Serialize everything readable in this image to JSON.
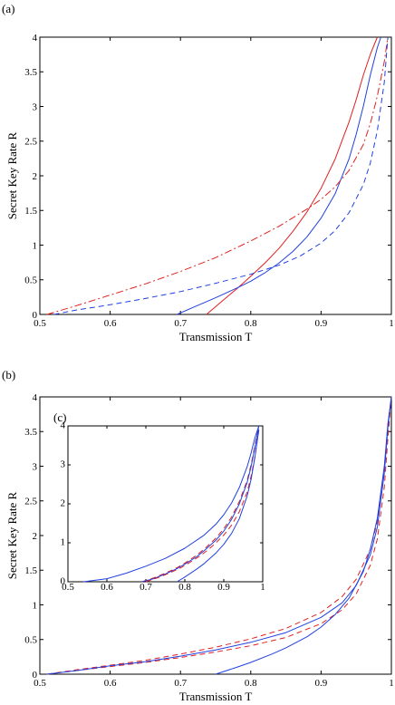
{
  "colors": {
    "red": "#e02020",
    "blue": "#2040e0"
  },
  "chart_data": [
    {
      "panel_label": "(a)",
      "type": "line",
      "xlabel": "Transmission T",
      "ylabel": "Secret Key Rate R",
      "xlim": [
        0.5,
        1.0
      ],
      "ylim": [
        0,
        4
      ],
      "xticks": [
        "0.5",
        "0.6",
        "0.7",
        "0.8",
        "0.9",
        "1"
      ],
      "yticks": [
        "0",
        "0.5",
        "1",
        "1.5",
        "2",
        "2.5",
        "3",
        "3.5",
        "4"
      ],
      "series": [
        {
          "color": "red",
          "style": "solid",
          "x": [
            0.737,
            0.76,
            0.78,
            0.8,
            0.82,
            0.84,
            0.86,
            0.88,
            0.9,
            0.92,
            0.94,
            0.95,
            0.96,
            0.97,
            0.98
          ],
          "y": [
            0,
            0.2,
            0.37,
            0.55,
            0.74,
            0.95,
            1.2,
            1.48,
            1.82,
            2.24,
            2.78,
            3.1,
            3.45,
            3.75,
            4.0
          ]
        },
        {
          "color": "blue",
          "style": "solid",
          "x": [
            0.695,
            0.72,
            0.75,
            0.78,
            0.8,
            0.82,
            0.84,
            0.86,
            0.88,
            0.9,
            0.92,
            0.94,
            0.95,
            0.96,
            0.97,
            0.98,
            0.985
          ],
          "y": [
            0,
            0.11,
            0.24,
            0.38,
            0.48,
            0.6,
            0.74,
            0.91,
            1.12,
            1.39,
            1.74,
            2.25,
            2.6,
            3.0,
            3.45,
            3.85,
            4.0
          ]
        },
        {
          "color": "red",
          "style": "dashdot",
          "x": [
            0.51,
            0.55,
            0.6,
            0.65,
            0.7,
            0.75,
            0.8,
            0.84,
            0.88,
            0.9,
            0.92,
            0.94,
            0.96,
            0.97,
            0.98,
            0.99,
            0.995
          ],
          "y": [
            0,
            0.12,
            0.28,
            0.44,
            0.62,
            0.82,
            1.06,
            1.27,
            1.52,
            1.66,
            1.84,
            2.08,
            2.45,
            2.75,
            3.15,
            3.65,
            4.0
          ]
        },
        {
          "color": "blue",
          "style": "dashed",
          "x": [
            0.52,
            0.55,
            0.6,
            0.65,
            0.7,
            0.75,
            0.8,
            0.84,
            0.87,
            0.9,
            0.92,
            0.94,
            0.96,
            0.97,
            0.98,
            0.99,
            0.995
          ],
          "y": [
            0,
            0.06,
            0.14,
            0.23,
            0.33,
            0.45,
            0.58,
            0.71,
            0.84,
            1.03,
            1.21,
            1.47,
            1.87,
            2.18,
            2.65,
            3.35,
            4.0
          ]
        }
      ]
    },
    {
      "panel_label": "(b)",
      "type": "line",
      "xlabel": "Transmission T",
      "ylabel": "Secret Key Rate R",
      "xlim": [
        0.5,
        1.0
      ],
      "ylim": [
        0,
        4
      ],
      "xticks": [
        "0.5",
        "0.6",
        "0.7",
        "0.8",
        "0.9",
        "1"
      ],
      "yticks": [
        "0",
        "0.5",
        "1",
        "1.5",
        "2",
        "2.5",
        "3",
        "3.5",
        "4"
      ],
      "series": [
        {
          "color": "red",
          "style": "dashed",
          "x": [
            0.51,
            0.55,
            0.6,
            0.65,
            0.7,
            0.75,
            0.8,
            0.85,
            0.9,
            0.93,
            0.95,
            0.97,
            0.98,
            0.99,
            0.995,
            1.0
          ],
          "y": [
            0,
            0.06,
            0.13,
            0.2,
            0.29,
            0.39,
            0.51,
            0.66,
            0.89,
            1.12,
            1.37,
            1.8,
            2.2,
            2.95,
            3.6,
            4.0
          ]
        },
        {
          "color": "red",
          "style": "dashed",
          "x": [
            0.51,
            0.55,
            0.6,
            0.65,
            0.7,
            0.75,
            0.8,
            0.85,
            0.9,
            0.93,
            0.95,
            0.97,
            0.98,
            0.99,
            0.995,
            1.0
          ],
          "y": [
            0,
            0.05,
            0.11,
            0.17,
            0.24,
            0.32,
            0.41,
            0.53,
            0.73,
            0.93,
            1.16,
            1.57,
            1.95,
            2.7,
            3.4,
            4.0
          ]
        },
        {
          "color": "blue",
          "style": "solid",
          "x": [
            0.51,
            0.55,
            0.6,
            0.65,
            0.7,
            0.75,
            0.8,
            0.85,
            0.9,
            0.93,
            0.95,
            0.97,
            0.98,
            0.99,
            0.995,
            1.0
          ],
          "y": [
            0,
            0.05,
            0.12,
            0.18,
            0.26,
            0.35,
            0.46,
            0.6,
            0.82,
            1.03,
            1.28,
            1.72,
            2.12,
            2.9,
            3.55,
            4.0
          ]
        },
        {
          "color": "blue",
          "style": "solid",
          "x": [
            0.75,
            0.78,
            0.8,
            0.83,
            0.85,
            0.88,
            0.9,
            0.92,
            0.94,
            0.96,
            0.97,
            0.98,
            0.99,
            0.995,
            1.0
          ],
          "y": [
            0,
            0.1,
            0.17,
            0.29,
            0.38,
            0.54,
            0.68,
            0.86,
            1.1,
            1.48,
            1.8,
            2.25,
            3.0,
            3.6,
            4.0
          ]
        }
      ],
      "inset": {
        "panel_label": "(c)",
        "xlim": [
          0.5,
          1.0
        ],
        "ylim": [
          0,
          4
        ],
        "xticks": [
          "0.5",
          "0.6",
          "0.7",
          "0.8",
          "0.9",
          "1"
        ],
        "yticks": [
          "0",
          "1",
          "2",
          "3",
          "4"
        ],
        "series": [
          {
            "color": "blue",
            "style": "solid",
            "x": [
              0.54,
              0.6,
              0.65,
              0.7,
              0.75,
              0.8,
              0.85,
              0.88,
              0.9,
              0.92,
              0.94,
              0.96,
              0.97,
              0.98,
              0.99
            ],
            "y": [
              0,
              0.08,
              0.22,
              0.4,
              0.6,
              0.86,
              1.2,
              1.48,
              1.72,
              2.02,
              2.42,
              2.95,
              3.3,
              3.7,
              4.0
            ]
          },
          {
            "color": "red",
            "style": "dashed",
            "x": [
              0.69,
              0.72,
              0.75,
              0.78,
              0.8,
              0.83,
              0.85,
              0.88,
              0.9,
              0.92,
              0.94,
              0.96,
              0.97,
              0.98,
              0.99
            ],
            "y": [
              0,
              0.1,
              0.22,
              0.36,
              0.48,
              0.68,
              0.84,
              1.12,
              1.36,
              1.66,
              2.06,
              2.6,
              3.0,
              3.5,
              4.0
            ]
          },
          {
            "color": "blue",
            "style": "solid",
            "x": [
              0.69,
              0.72,
              0.75,
              0.78,
              0.8,
              0.83,
              0.85,
              0.88,
              0.9,
              0.92,
              0.94,
              0.96,
              0.97,
              0.98,
              0.99
            ],
            "y": [
              0,
              0.08,
              0.2,
              0.34,
              0.45,
              0.64,
              0.8,
              1.07,
              1.3,
              1.6,
              2.0,
              2.55,
              2.95,
              3.45,
              4.0
            ]
          },
          {
            "color": "red",
            "style": "dashed",
            "x": [
              0.7,
              0.73,
              0.76,
              0.79,
              0.81,
              0.84,
              0.86,
              0.88,
              0.9,
              0.92,
              0.94,
              0.96,
              0.97,
              0.98,
              0.99
            ],
            "y": [
              0,
              0.1,
              0.22,
              0.36,
              0.48,
              0.67,
              0.82,
              1.0,
              1.2,
              1.45,
              1.8,
              2.3,
              2.7,
              3.2,
              3.9
            ]
          },
          {
            "color": "blue",
            "style": "solid",
            "x": [
              0.78,
              0.8,
              0.83,
              0.85,
              0.88,
              0.9,
              0.92,
              0.94,
              0.96,
              0.97,
              0.98,
              0.99
            ],
            "y": [
              0,
              0.12,
              0.32,
              0.47,
              0.74,
              0.96,
              1.24,
              1.62,
              2.2,
              2.62,
              3.2,
              3.9
            ]
          }
        ]
      }
    }
  ]
}
